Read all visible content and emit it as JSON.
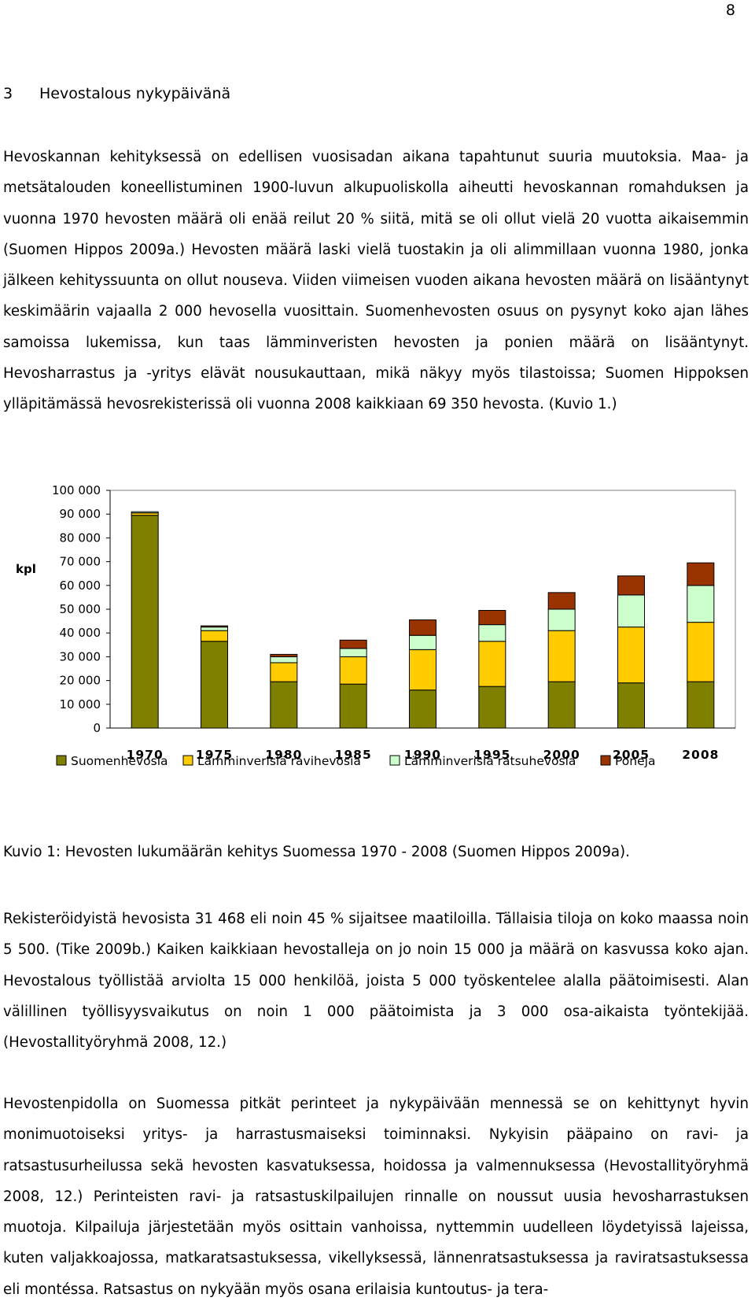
{
  "page_number": "8",
  "section": {
    "number": "3",
    "title": "Hevostalous nykypäivänä"
  },
  "paragraphs": [
    "Hevoskannan kehityksessä on edellisen vuosisadan aikana tapahtunut suuria muutoksia. Maa- ja metsätalouden koneellistuminen 1900-luvun alkupuoliskolla aiheutti hevoskannan romahduksen ja vuonna 1970 hevosten määrä oli enää reilut 20 % siitä, mitä se oli ollut vielä 20 vuotta aikaisemmin (Suomen Hippos 2009a.) Hevosten määrä laski vielä tuostakin ja oli alimmillaan vuonna 1980, jonka jälkeen kehityssuunta on ollut nouseva. Viiden viimeisen vuoden aikana hevosten määrä on lisääntynyt keskimäärin vajaalla 2 000 hevosella vuosittain. Suomenhevosten osuus on pysynyt koko ajan lähes samoissa lukemissa, kun taas lämminveristen hevosten ja ponien määrä on lisääntynyt. Hevosharrastus ja -yritys elävät nousukauttaan, mikä näkyy myös tilastoissa; Suomen Hippoksen ylläpitämässä hevosrekisterissä oli vuonna 2008 kaikkiaan 69 350 hevosta. (Kuvio 1.)",
    "Rekisteröidyistä hevosista 31 468 eli noin 45 % sijaitsee maatiloilla. Tällaisia tiloja on koko maassa noin 5 500. (Tike 2009b.) Kaiken kaikkiaan hevostalleja on jo noin 15 000 ja määrä on kasvussa koko ajan. Hevostalous työllistää arviolta 15 000 henkilöä, joista 5 000 työskentelee alalla päätoimisesti. Alan välillinen työllisyysvaikutus on noin 1 000 päätoimista ja 3 000 osa-aikaista työntekijää. (Hevostallityöryhmä 2008, 12.)",
    "Hevostenpidolla on Suomessa pitkät perinteet ja nykypäivään mennessä se on kehittynyt hyvin monimuotoiseksi yritys- ja harrastusmaiseksi toiminnaksi. Nykyisin pääpaino on ravi- ja ratsastusurheilussa sekä hevosten kasvatuksessa, hoidossa ja valmennuksessa (Hevostallityöryhmä 2008, 12.) Perinteisten ravi- ja ratsastuskilpailujen rinnalle on noussut uusia hevosharrastuksen muotoja. Kilpailuja järjestetään myös osittain vanhoissa, nyttemmin uudelleen löydetyissä lajeissa, kuten valjakkoajossa, matkaratsastuksessa, vikellyksessä, lännenratsastuksessa ja raviratsastuksessa eli montéssa. Ratsastus on nykyään myös osana erilaisia kuntoutus- ja tera-"
  ],
  "caption": "Kuvio 1: Hevosten lukumäärän kehitys Suomessa 1970 - 2008 (Suomen Hippos 2009a).",
  "chart_data": {
    "type": "bar",
    "stacked": true,
    "ylabel": "kpl",
    "ylim": [
      0,
      100000
    ],
    "yticks": [
      "0",
      "10 000",
      "20 000",
      "30 000",
      "40 000",
      "50 000",
      "60 000",
      "70 000",
      "80 000",
      "90 000",
      "100 000"
    ],
    "categories": [
      "1970",
      "1975",
      "1980",
      "1985",
      "1990",
      "1995",
      "2000",
      "2005",
      "2008"
    ],
    "series": [
      {
        "name": "Suomenhevosia",
        "color": "#808000",
        "values": [
          89500,
          36500,
          19500,
          18500,
          16000,
          17500,
          19500,
          19000,
          19500
        ]
      },
      {
        "name": "Lämminverisiä ravihevosia",
        "color": "#ffcc00",
        "values": [
          1000,
          4500,
          8000,
          11500,
          17000,
          19000,
          21500,
          23500,
          25000
        ]
      },
      {
        "name": "Lämminverisiä ratsuhevosia",
        "color": "#ccffcc",
        "values": [
          500,
          1500,
          2500,
          3500,
          6000,
          7000,
          9000,
          13500,
          15500
        ]
      },
      {
        "name": "Poneja",
        "color": "#993300",
        "values": [
          0,
          500,
          1000,
          3500,
          6500,
          6000,
          7000,
          8000,
          9500
        ]
      }
    ]
  }
}
